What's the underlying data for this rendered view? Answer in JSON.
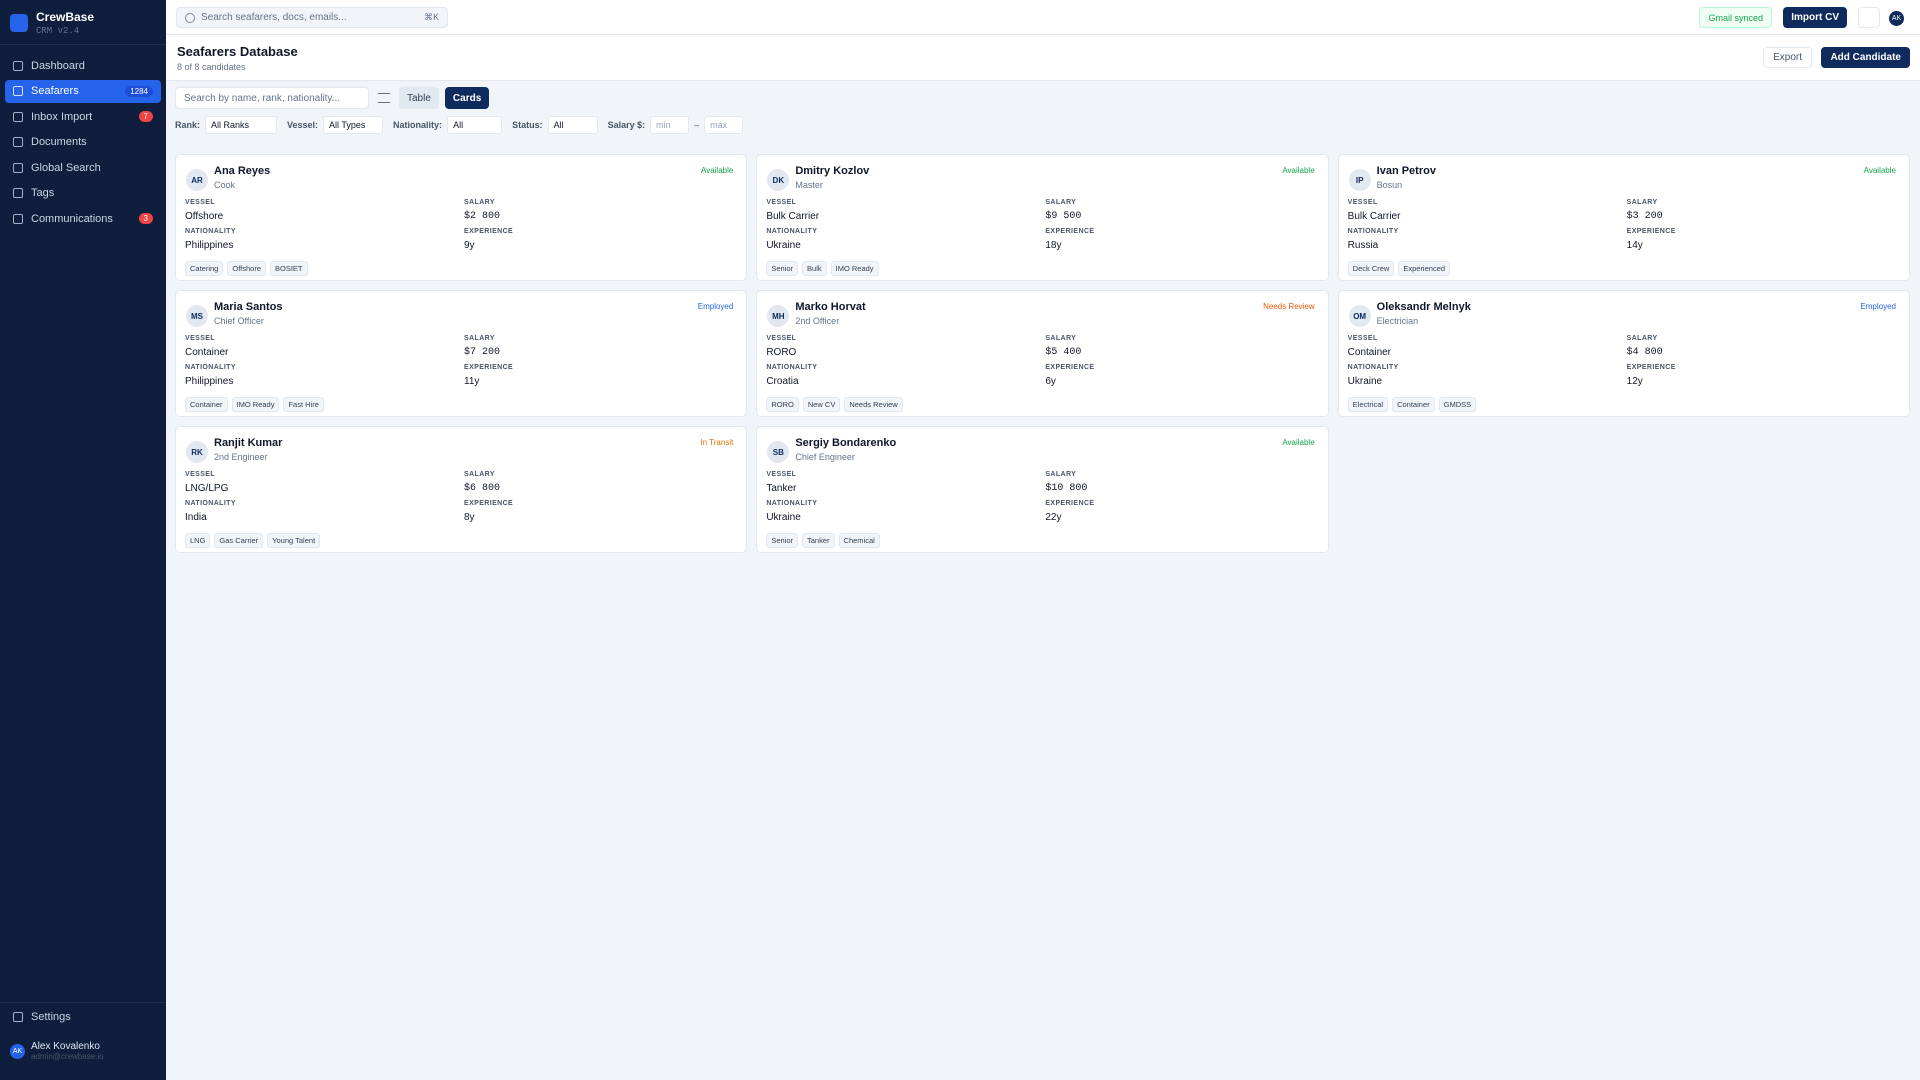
{
  "sidebar": {
    "brand": "CrewBase",
    "version": "CRM v2.4",
    "nav": [
      {
        "label": "Dashboard"
      },
      {
        "label": "Seafarers",
        "badge": 1284
      },
      {
        "label": "Inbox Import",
        "badge": 7
      },
      {
        "label": "Documents"
      },
      {
        "label": "Global Search"
      },
      {
        "label": "Tags"
      },
      {
        "label": "Communications",
        "badge": 3
      }
    ],
    "settings": "Settings",
    "user": {
      "initials": "AK",
      "name": "Alex Kovalenko",
      "email": "admin@crewbase.io"
    }
  },
  "topbar": {
    "search_placeholder": "Search seafarers, docs, emails...",
    "shortcut": "⌘K",
    "gmail_status": "Gmail synced",
    "import_button": "Import CV",
    "avatar": "AK"
  },
  "header": {
    "title": "Seafarers Database",
    "subtitle": "8 of 8 candidates",
    "export_button": "Export",
    "add_button": "Add Candidate"
  },
  "toolbar": {
    "search_placeholder": "Search by name, rank, nationality...",
    "view_table": "Table",
    "view_cards": "Cards"
  },
  "filters": {
    "rank_label": "Rank:",
    "rank_value": "All Ranks",
    "vessel_label": "Vessel:",
    "vessel_value": "All Types",
    "nationality_label": "Nationality:",
    "nationality_value": "All",
    "status_label": "Status:",
    "status_value": "All",
    "salary_label": "Salary $:",
    "salary_min": "min",
    "salary_separator": "–",
    "salary_max": "max"
  },
  "field_labels": {
    "vessel": "VESSEL",
    "salary": "SALARY",
    "nationality": "NATIONALITY",
    "experience": "EXPERIENCE"
  },
  "cards": [
    {
      "initials": "AR",
      "name": "Ana Reyes",
      "rank": "Cook",
      "status": "Available",
      "status_color": "#16a34a",
      "vessel": "Offshore",
      "salary": "$2 800",
      "nationality": "Philippines",
      "experience": "9y",
      "tags": [
        "Catering",
        "Offshore",
        "BOSIET"
      ]
    },
    {
      "initials": "DK",
      "name": "Dmitry Kozlov",
      "rank": "Master",
      "status": "Available",
      "status_color": "#16a34a",
      "vessel": "Bulk Carrier",
      "salary": "$9 500",
      "nationality": "Ukraine",
      "experience": "18y",
      "tags": [
        "Senior",
        "Bulk",
        "IMO Ready"
      ]
    },
    {
      "initials": "IP",
      "name": "Ivan Petrov",
      "rank": "Bosun",
      "status": "Available",
      "status_color": "#16a34a",
      "vessel": "Bulk Carrier",
      "salary": "$3 200",
      "nationality": "Russia",
      "experience": "14y",
      "tags": [
        "Deck Crew",
        "Experienced"
      ]
    },
    {
      "initials": "MS",
      "name": "Maria Santos",
      "rank": "Chief Officer",
      "status": "Employed",
      "status_color": "#2563eb",
      "vessel": "Container",
      "salary": "$7 200",
      "nationality": "Philippines",
      "experience": "11y",
      "tags": [
        "Container",
        "IMO Ready",
        "Fast Hire"
      ]
    },
    {
      "initials": "MH",
      "name": "Marko Horvat",
      "rank": "2nd Officer",
      "status": "Needs Review",
      "status_color": "#ea580c",
      "vessel": "RORO",
      "salary": "$5 400",
      "nationality": "Croatia",
      "experience": "6y",
      "tags": [
        "RORO",
        "New CV",
        "Needs Review"
      ]
    },
    {
      "initials": "OM",
      "name": "Oleksandr Melnyk",
      "rank": "Electrician",
      "status": "Employed",
      "status_color": "#2563eb",
      "vessel": "Container",
      "salary": "$4 800",
      "nationality": "Ukraine",
      "experience": "12y",
      "tags": [
        "Electrical",
        "Container",
        "GMDSS"
      ]
    },
    {
      "initials": "RK",
      "name": "Ranjit Kumar",
      "rank": "2nd Engineer",
      "status": "In Transit",
      "status_color": "#d97706",
      "vessel": "LNG/LPG",
      "salary": "$6 800",
      "nationality": "India",
      "experience": "8y",
      "tags": [
        "LNG",
        "Gas Carrier",
        "Young Talent"
      ]
    },
    {
      "initials": "SB",
      "name": "Sergiy Bondarenko",
      "rank": "Chief Engineer",
      "status": "Available",
      "status_color": "#16a34a",
      "vessel": "Tanker",
      "salary": "$10 800",
      "nationality": "Ukraine",
      "experience": "22y",
      "tags": [
        "Senior",
        "Tanker",
        "Chemical"
      ]
    }
  ]
}
